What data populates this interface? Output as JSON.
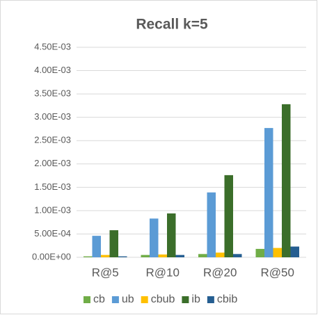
{
  "chart_data": {
    "type": "bar",
    "title": "Recall k=5",
    "categories": [
      "R@5",
      "R@10",
      "R@20",
      "R@50"
    ],
    "series": [
      {
        "name": "cb",
        "color": "#70ad47",
        "values": [
          2e-05,
          5e-05,
          7e-05,
          0.00018
        ]
      },
      {
        "name": "ub",
        "color": "#5b9bd5",
        "values": [
          0.00046,
          0.00083,
          0.00139,
          0.00277
        ]
      },
      {
        "name": "cbub",
        "color": "#ffc000",
        "values": [
          5e-05,
          6e-05,
          0.0001,
          0.0002
        ]
      },
      {
        "name": "ib",
        "color": "#3b6e2a",
        "values": [
          0.00058,
          0.00094,
          0.00176,
          0.00328
        ]
      },
      {
        "name": "cbib",
        "color": "#255e91",
        "values": [
          2e-05,
          5e-05,
          7e-05,
          0.00023
        ]
      }
    ],
    "ylim": [
      0,
      0.0045
    ],
    "yticks": [
      {
        "value": 0,
        "label": "0.00E+00"
      },
      {
        "value": 0.0005,
        "label": "5.00E-04"
      },
      {
        "value": 0.001,
        "label": "1.00E-03"
      },
      {
        "value": 0.0015,
        "label": "1.50E-03"
      },
      {
        "value": 0.002,
        "label": "2.00E-03"
      },
      {
        "value": 0.0025,
        "label": "2.50E-03"
      },
      {
        "value": 0.003,
        "label": "3.00E-03"
      },
      {
        "value": 0.0035,
        "label": "3.50E-03"
      },
      {
        "value": 0.004,
        "label": "4.00E-03"
      },
      {
        "value": 0.0045,
        "label": "4.50E-03"
      }
    ],
    "grid": true,
    "legend": "bottom"
  }
}
